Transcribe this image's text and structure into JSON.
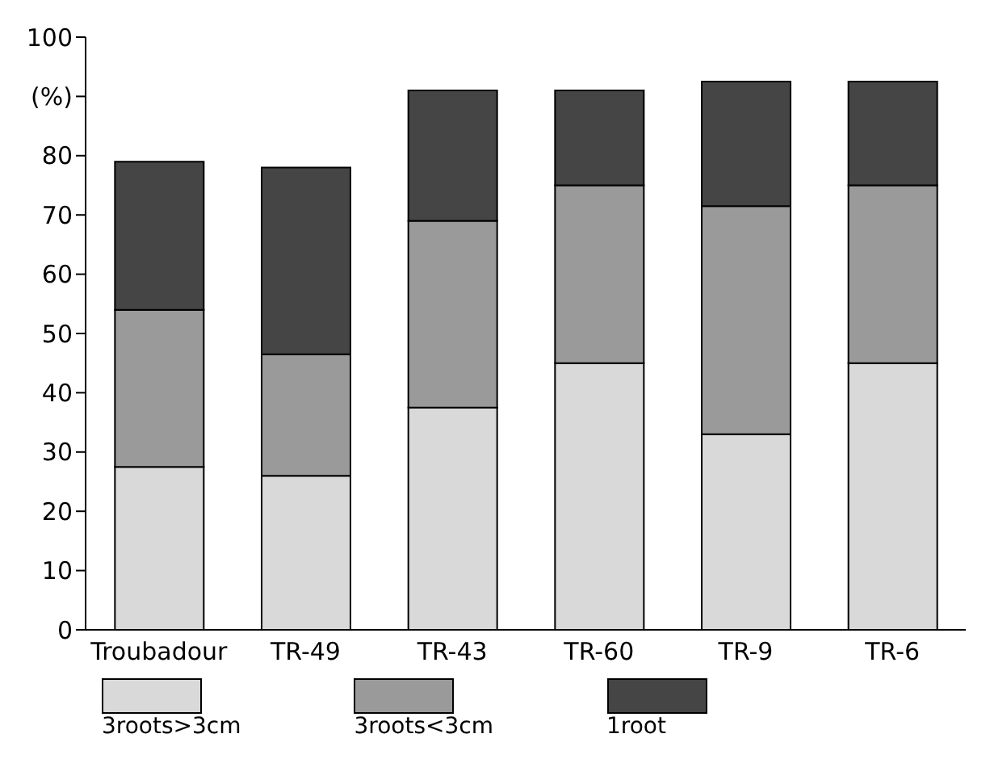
{
  "chart_data": {
    "type": "bar",
    "stacked": true,
    "categories": [
      "Troubadour",
      "TR-49",
      "TR-43",
      "TR-60",
      "TR-9",
      "TR-6"
    ],
    "series": [
      {
        "name": "3roots>3cm",
        "color": "#d9d9d9",
        "values": [
          27.5,
          26,
          37.5,
          45,
          33,
          45
        ]
      },
      {
        "name": "3roots<3cm",
        "color": "#9a9a9a",
        "values": [
          26.5,
          20.5,
          31.5,
          30,
          38.5,
          30
        ]
      },
      {
        "name": "1root",
        "color": "#454545",
        "values": [
          25,
          31.5,
          22,
          16,
          21,
          17.5
        ]
      }
    ],
    "ylim": [
      0,
      100
    ],
    "yticks": [
      0,
      10,
      20,
      30,
      40,
      50,
      60,
      70,
      80,
      {
        "value": 90,
        "label": "(%)"
      },
      100
    ],
    "grid": false,
    "legend": "bottom"
  }
}
